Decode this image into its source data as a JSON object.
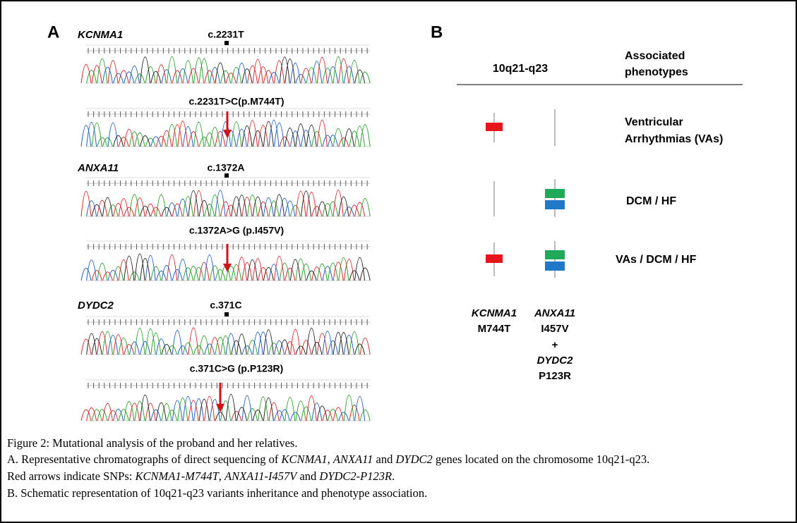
{
  "panel_a": {
    "letter": "A",
    "genes": [
      {
        "name": "KCNMA1",
        "reference": "c.2231T",
        "variant": "c.2231T>C(p.M744T)"
      },
      {
        "name": "ANXA11",
        "reference": "c.1372A",
        "variant": "c.1372A>G (p.I457V)"
      },
      {
        "name": "DYDC2",
        "reference": "c.371C",
        "variant": "c.371C>G (p.P123R)"
      }
    ]
  },
  "panel_b": {
    "letter": "B",
    "locus": "10q21-q23",
    "phenotype_header": [
      "Associated",
      "phenotypes"
    ],
    "phenotypes": [
      [
        "Ventricular",
        "Arrhythmias (VAs)"
      ],
      [
        "DCM / HF"
      ],
      [
        "VAs / DCM / HF"
      ]
    ],
    "variants": [
      {
        "gene": "KCNMA1",
        "change": "M744T"
      },
      {
        "gene": "ANXA11",
        "change": "I457V",
        "joiner": "+",
        "gene2": "DYDC2",
        "change2": "P123R"
      }
    ]
  },
  "caption": [
    [
      "Figure 2: Mutational analysis of the proband and her relatives."
    ],
    [
      "A. Representative chromatographs of direct sequencing of ",
      "KCNMA1",
      ", ",
      "ANXA11",
      " and ",
      "DYDC2",
      " genes located on the chromosome 10q21-q23."
    ],
    [
      "Red arrows indicate SNPs: ",
      "KCNMA1-M744T",
      ", ",
      "ANXA11-I457V",
      " and ",
      "DYDC2-P123R",
      "."
    ],
    [
      "B. Schematic representation of 10q21-q23 variants inheritance and phenotype association."
    ]
  ]
}
